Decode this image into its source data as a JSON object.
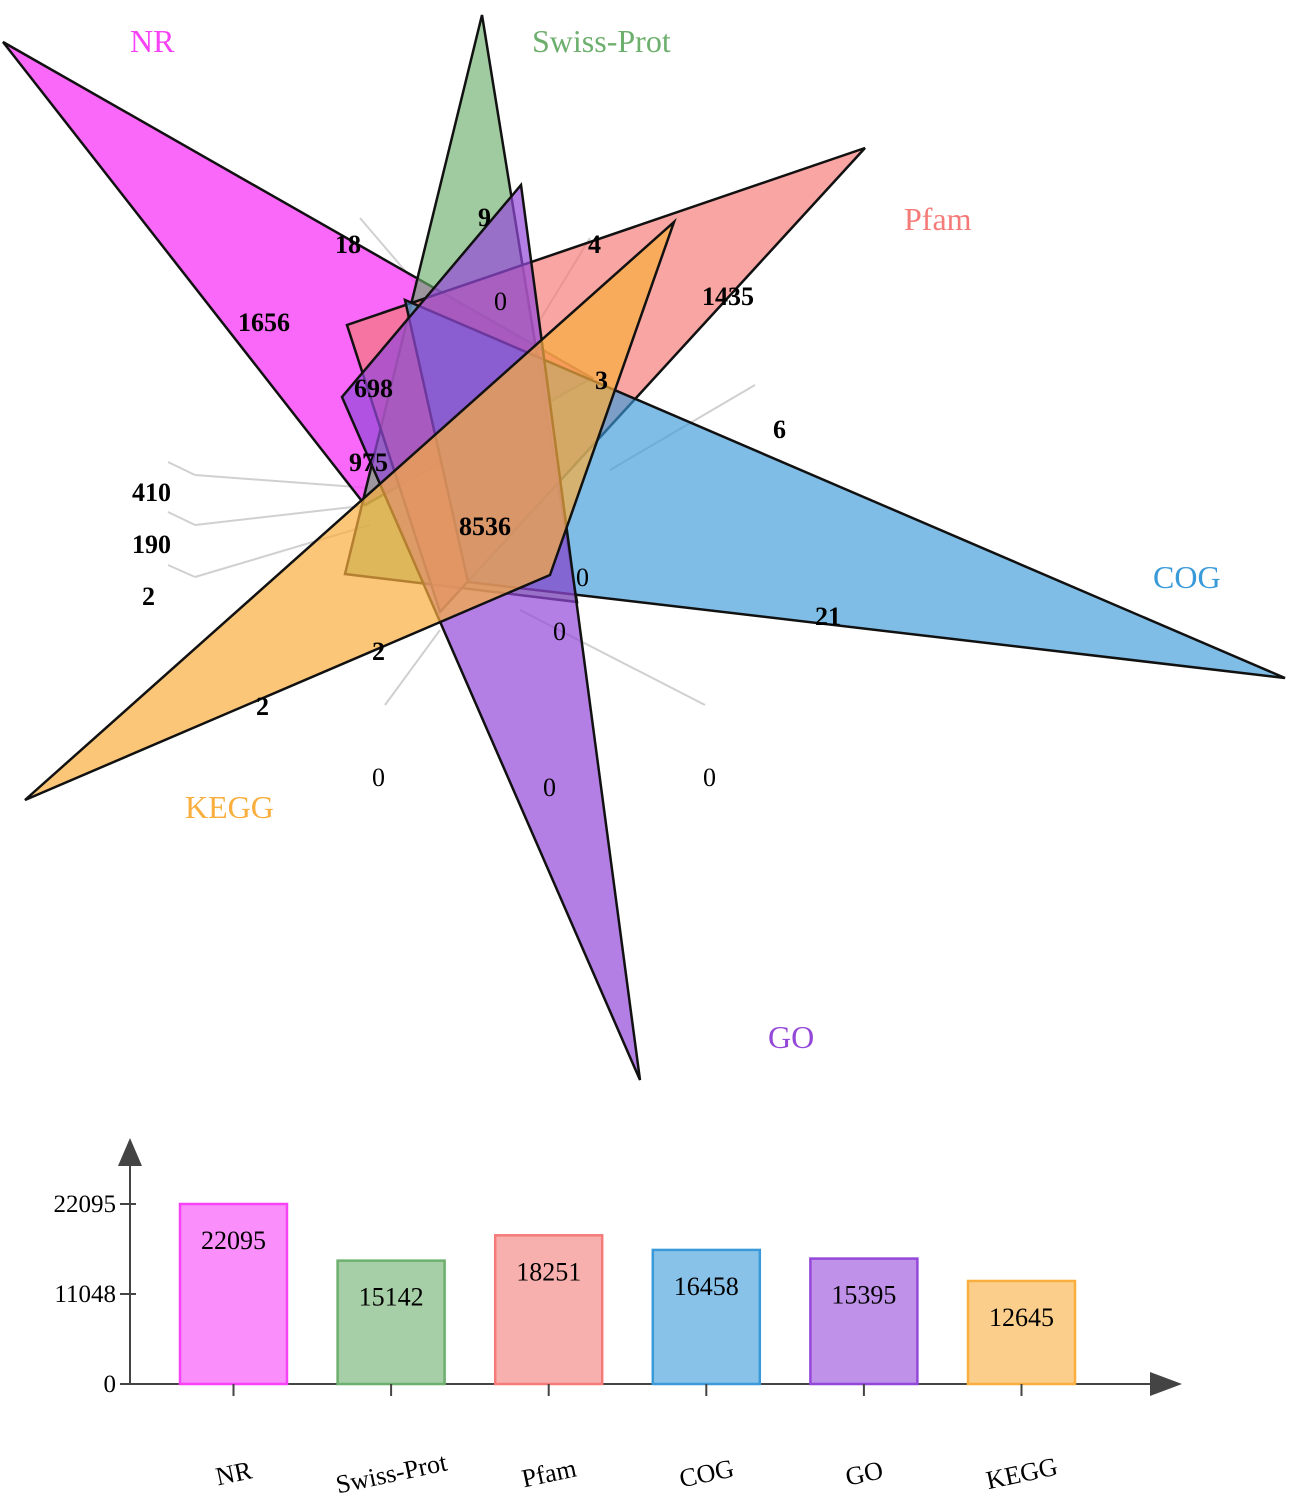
{
  "colors": {
    "NR": "#f742f7",
    "Swiss-Prot": "#6daf6d",
    "Pfam": "#f47b78",
    "COG": "#3a9ad9",
    "GO": "#9448d9",
    "KEGG": "#f9ae3d"
  },
  "venn": {
    "sets": [
      {
        "name": "NR",
        "color": "#f742f7"
      },
      {
        "name": "Swiss-Prot",
        "color": "#6daf6d"
      },
      {
        "name": "Pfam",
        "color": "#f47b78"
      },
      {
        "name": "COG",
        "color": "#3a9ad9"
      },
      {
        "name": "GO",
        "color": "#9448d9"
      },
      {
        "name": "KEGG",
        "color": "#f9ae3d"
      }
    ],
    "counts": [
      "18",
      "9",
      "4",
      "1656",
      "0",
      "1435",
      "698",
      "3",
      "6",
      "975",
      "410",
      "8536",
      "190",
      "2",
      "0",
      "21",
      "0",
      "2",
      "2",
      "0",
      "0",
      "0"
    ]
  },
  "chart_data": {
    "type": "bar",
    "categories": [
      "NR",
      "Swiss-Prot",
      "Pfam",
      "COG",
      "GO",
      "KEGG"
    ],
    "values": [
      22095,
      15142,
      18251,
      16458,
      15395,
      12645
    ],
    "colors": [
      "#f742f7",
      "#6daf6d",
      "#f47b78",
      "#3a9ad9",
      "#9448d9",
      "#f9ae3d"
    ],
    "yticks": [
      0,
      11048,
      22095
    ],
    "ylim": [
      0,
      22095
    ],
    "title": "",
    "xlabel": "",
    "ylabel": ""
  }
}
